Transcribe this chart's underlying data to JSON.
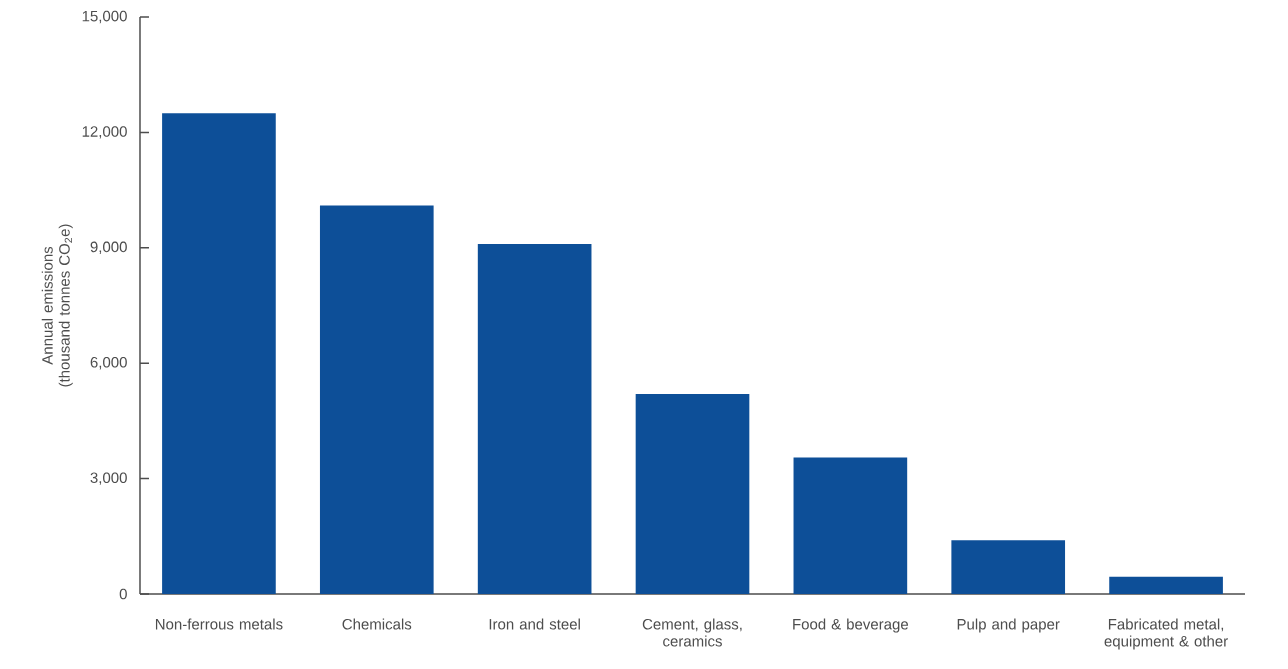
{
  "chart_data": {
    "type": "bar",
    "ylabel": "Annual emissions (thousand tonnes CO$_{2}$e)",
    "categories": [
      "Non-ferrous metals",
      "Chemicals",
      "Iron and steel",
      "Cement, glass, ceramics",
      "Food & beverage",
      "Pulp and paper",
      "Fabricated metal, equipment & other"
    ],
    "values": [
      12500,
      10100,
      9100,
      5200,
      3550,
      1400,
      450
    ],
    "color": "#0d4f98",
    "ylim": [
      0,
      15000
    ],
    "yticks": [
      {
        "value": 0,
        "label": "0"
      },
      {
        "value": 3000,
        "label": "3,000"
      },
      {
        "value": 6000,
        "label": "6,000"
      },
      {
        "value": 9000,
        "label": "9,000"
      },
      {
        "value": 12000,
        "label": "12,000"
      },
      {
        "value": 15000,
        "label": "15,000"
      }
    ]
  }
}
